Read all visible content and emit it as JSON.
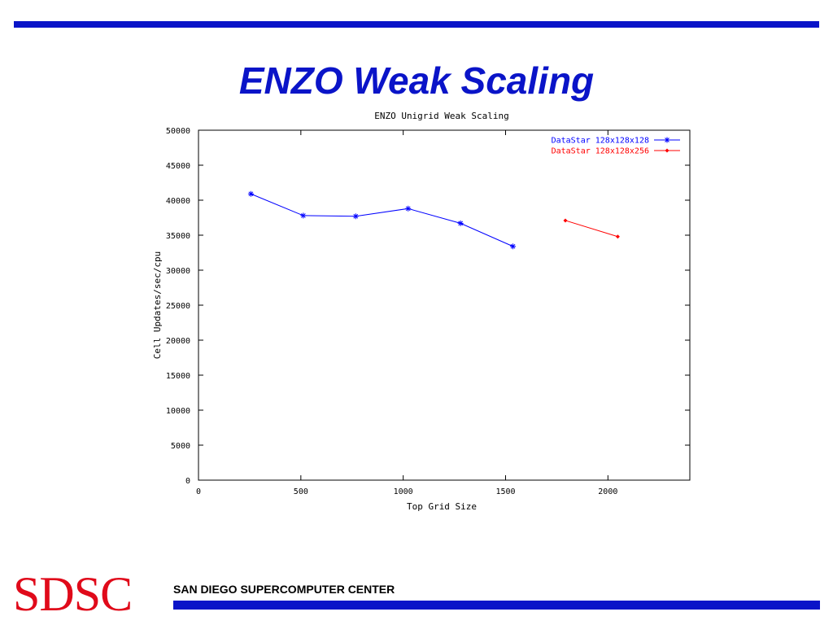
{
  "slide": {
    "title": "ENZO Weak Scaling",
    "footer_logo": "SDSC",
    "footer_center": "SAN DIEGO SUPERCOMPUTER CENTER",
    "accent_color": "#0a14c8",
    "logo_color": "#e00a1a"
  },
  "chart_data": {
    "type": "line",
    "title": "ENZO Unigrid Weak Scaling",
    "xlabel": "Top Grid Size",
    "ylabel": "Cell Updates/sec/cpu",
    "xlim": [
      0,
      2400
    ],
    "ylim": [
      0,
      50000
    ],
    "xticks": [
      0,
      500,
      1000,
      1500,
      2000
    ],
    "yticks": [
      0,
      5000,
      10000,
      15000,
      20000,
      25000,
      30000,
      35000,
      40000,
      45000,
      50000
    ],
    "legend_position": "top-right",
    "grid": false,
    "series": [
      {
        "name": "DataStar 128x128x128",
        "color": "#0000ff",
        "marker": "star",
        "points": [
          [
            256,
            40900
          ],
          [
            512,
            37800
          ],
          [
            768,
            37700
          ],
          [
            1024,
            38800
          ],
          [
            1280,
            36700
          ],
          [
            1536,
            33400
          ]
        ]
      },
      {
        "name": "DataStar 128x128x256",
        "color": "#ff0000",
        "marker": "diamond",
        "points": [
          [
            1792,
            37100
          ],
          [
            2048,
            34800
          ]
        ]
      }
    ]
  }
}
